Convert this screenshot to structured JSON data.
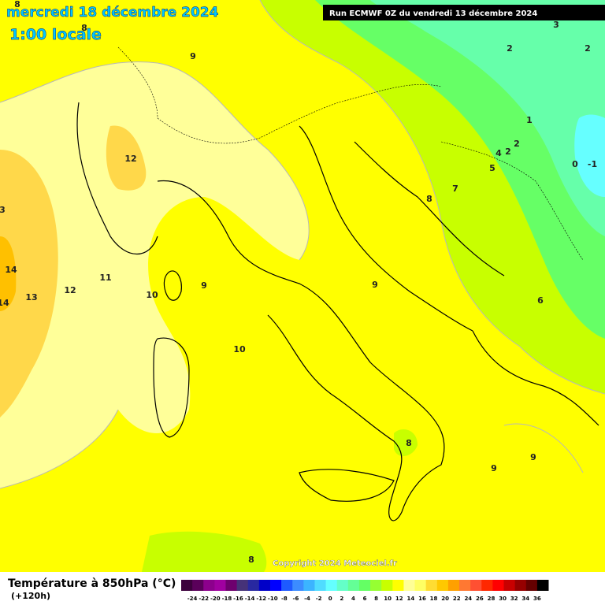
{
  "header": {
    "date": "mercredi 18 décembre 2024",
    "time": "1:00 locale",
    "run": "Run ECMWF 0Z du vendredi 13 décembre 2024"
  },
  "copyright": "Copyright 2024 Meteociel.fr",
  "legend": {
    "title": "Température à 850hPa (°C)",
    "subtitle": "(+120h)",
    "labels": [
      -24,
      -22,
      -20,
      -18,
      -16,
      -14,
      -12,
      -10,
      -8,
      -6,
      -4,
      -2,
      0,
      2,
      4,
      6,
      8,
      10,
      12,
      14,
      16,
      18,
      20,
      22,
      24,
      26,
      28,
      30,
      32,
      34,
      36
    ],
    "colors": [
      "#3c003c",
      "#5a005a",
      "#8c008c",
      "#a000a0",
      "#6e006e",
      "#463278",
      "#2828a0",
      "#0000c8",
      "#0000ff",
      "#1e5aff",
      "#3c8cff",
      "#3cb4ff",
      "#50dcff",
      "#64ffff",
      "#64ffc8",
      "#64ff96",
      "#64ff64",
      "#96ff32",
      "#c8ff00",
      "#ffff00",
      "#ffff96",
      "#ffff64",
      "#ffdc32",
      "#ffc800",
      "#ffa000",
      "#ff7832",
      "#ff5032",
      "#ff2800",
      "#ff0000",
      "#c80000",
      "#960000",
      "#640000",
      "#000000"
    ]
  },
  "contour_labels": [
    "8",
    "8",
    "9",
    "3",
    "2",
    "2",
    "1",
    "2",
    "4",
    "2",
    "5",
    "0",
    "-1",
    "12",
    "7",
    "8",
    "3",
    "14",
    "11",
    "13",
    "12",
    "14",
    "10",
    "9",
    "9",
    "6",
    "10",
    "8",
    "9",
    "9",
    "8"
  ]
}
